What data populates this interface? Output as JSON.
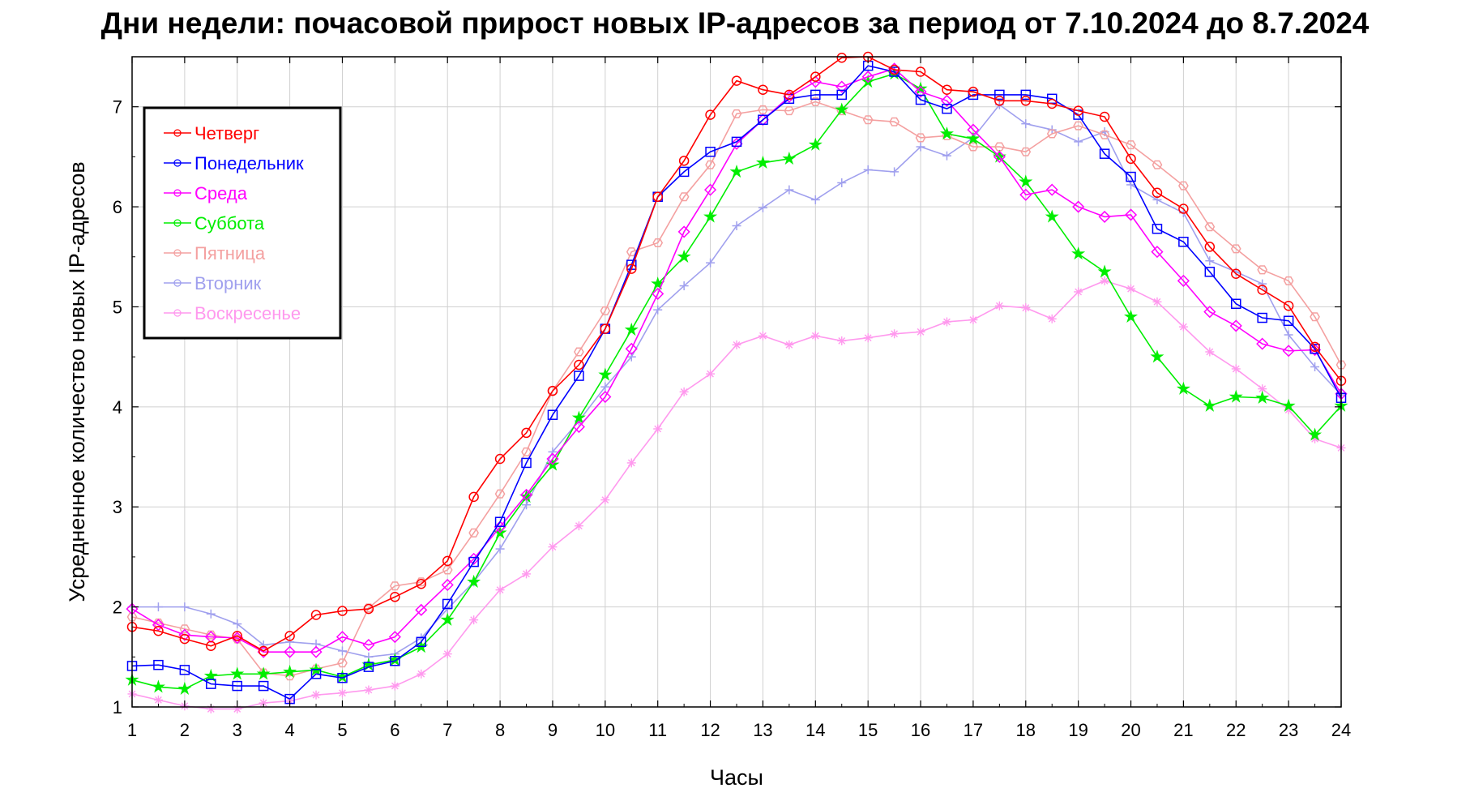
{
  "chart_data": {
    "type": "line",
    "title": "Дни недели: почасовой прирост новых IP-адресов за период от 7.10.2024 до 8.7.2024",
    "xlabel": "Часы",
    "ylabel": "Усредненное количество новых IP-адресов",
    "xlim": [
      1,
      24
    ],
    "ylim": [
      1,
      7.5
    ],
    "xticks": [
      "1",
      "2",
      "3",
      "4",
      "5",
      "6",
      "7",
      "8",
      "9",
      "10",
      "11",
      "12",
      "13",
      "14",
      "15",
      "16",
      "17",
      "18",
      "19",
      "20",
      "21",
      "22",
      "23",
      "24"
    ],
    "yticks": [
      "1",
      "2",
      "3",
      "4",
      "5",
      "6",
      "7"
    ],
    "grid": true,
    "legend_position": "top-left",
    "x": [
      1,
      1.5,
      2,
      2.5,
      3,
      3.5,
      4,
      4.5,
      5,
      5.5,
      6,
      6.5,
      7,
      7.5,
      8,
      8.5,
      9,
      9.5,
      10,
      10.5,
      11,
      11.5,
      12,
      12.5,
      13,
      13.5,
      14,
      14.5,
      15,
      15.5,
      16,
      16.5,
      17,
      17.5,
      18,
      18.5,
      19,
      19.5,
      20,
      20.5,
      21,
      21.5,
      22,
      22.5,
      23,
      23.5,
      24
    ],
    "series": [
      {
        "name": "Четверг",
        "color": "#ff0000",
        "marker": "circle",
        "values": [
          1.8,
          1.76,
          1.68,
          1.61,
          1.71,
          1.56,
          1.71,
          1.92,
          1.96,
          1.98,
          2.1,
          2.23,
          2.46,
          3.1,
          3.48,
          3.74,
          4.16,
          4.42,
          4.78,
          5.38,
          6.1,
          6.46,
          6.92,
          7.26,
          7.17,
          7.12,
          7.3,
          7.49,
          7.5,
          7.37,
          7.35,
          7.17,
          7.15,
          7.06,
          7.06,
          7.03,
          6.96,
          6.9,
          6.48,
          6.14,
          5.98,
          5.6,
          5.33,
          5.17,
          5.01,
          4.6,
          4.26
        ]
      },
      {
        "name": "Понедельник",
        "color": "#0000ff",
        "marker": "square",
        "values": [
          1.41,
          1.42,
          1.37,
          1.23,
          1.21,
          1.21,
          1.08,
          1.33,
          1.29,
          1.4,
          1.46,
          1.65,
          2.03,
          2.45,
          2.85,
          3.44,
          3.92,
          4.31,
          4.78,
          5.42,
          6.1,
          6.35,
          6.55,
          6.65,
          6.87,
          7.08,
          7.12,
          7.12,
          7.41,
          7.35,
          7.07,
          6.98,
          7.12,
          7.12,
          7.12,
          7.08,
          6.92,
          6.53,
          6.3,
          5.78,
          5.65,
          5.35,
          5.03,
          4.89,
          4.86,
          4.58,
          4.09
        ]
      },
      {
        "name": "Среда",
        "color": "#ff00ff",
        "marker": "diamond",
        "values": [
          1.98,
          1.82,
          1.72,
          1.7,
          1.69,
          1.55,
          1.55,
          1.55,
          1.7,
          1.62,
          1.7,
          1.97,
          2.22,
          2.48,
          2.8,
          3.12,
          3.48,
          3.8,
          4.1,
          4.58,
          5.13,
          5.75,
          6.17,
          6.63,
          6.87,
          7.1,
          7.25,
          7.2,
          7.3,
          7.38,
          7.15,
          7.06,
          6.77,
          6.5,
          6.12,
          6.17,
          6.0,
          5.9,
          5.92,
          5.55,
          5.26,
          4.95,
          4.81,
          4.63,
          4.56,
          4.57,
          4.13
        ]
      },
      {
        "name": "Суббота",
        "color": "#00ee00",
        "marker": "star",
        "values": [
          1.27,
          1.2,
          1.18,
          1.31,
          1.33,
          1.33,
          1.35,
          1.37,
          1.3,
          1.42,
          1.47,
          1.6,
          1.87,
          2.25,
          2.74,
          3.1,
          3.42,
          3.89,
          4.32,
          4.77,
          5.23,
          5.5,
          5.9,
          6.35,
          6.44,
          6.48,
          6.62,
          6.97,
          7.25,
          7.33,
          7.18,
          6.73,
          6.68,
          6.5,
          6.25,
          5.9,
          5.53,
          5.35,
          4.9,
          4.5,
          4.18,
          4.01,
          4.1,
          4.09,
          4.01,
          3.72,
          4.01
        ]
      },
      {
        "name": "Пятница",
        "color": "#f4a0a0",
        "marker": "hexagon",
        "values": [
          1.9,
          1.84,
          1.78,
          1.72,
          1.68,
          1.34,
          1.31,
          1.38,
          1.44,
          1.99,
          2.21,
          2.25,
          2.37,
          2.74,
          3.13,
          3.55,
          4.16,
          4.55,
          4.96,
          5.55,
          5.64,
          6.1,
          6.42,
          6.93,
          6.97,
          6.96,
          7.05,
          6.96,
          6.87,
          6.85,
          6.69,
          6.71,
          6.6,
          6.6,
          6.55,
          6.73,
          6.81,
          6.72,
          6.62,
          6.42,
          6.21,
          5.8,
          5.58,
          5.37,
          5.26,
          4.9,
          4.42
        ]
      },
      {
        "name": "Вторник",
        "color": "#a0a0ee",
        "marker": "plus",
        "values": [
          2.0,
          2.0,
          2.0,
          1.93,
          1.83,
          1.62,
          1.65,
          1.63,
          1.56,
          1.5,
          1.53,
          1.69,
          1.98,
          2.25,
          2.58,
          3.02,
          3.55,
          3.86,
          4.2,
          4.5,
          4.97,
          5.21,
          5.44,
          5.81,
          5.99,
          6.17,
          6.07,
          6.24,
          6.37,
          6.35,
          6.6,
          6.51,
          6.69,
          7.02,
          6.83,
          6.77,
          6.65,
          6.75,
          6.22,
          6.07,
          5.94,
          5.46,
          5.35,
          5.23,
          4.72,
          4.4,
          4.12
        ]
      },
      {
        "name": "Воскресенье",
        "color": "#ff99ee",
        "marker": "asterisk",
        "values": [
          1.13,
          1.07,
          1.01,
          0.98,
          0.98,
          1.04,
          1.06,
          1.12,
          1.14,
          1.17,
          1.21,
          1.33,
          1.53,
          1.87,
          2.17,
          2.33,
          2.6,
          2.81,
          3.07,
          3.44,
          3.78,
          4.15,
          4.33,
          4.62,
          4.71,
          4.62,
          4.71,
          4.66,
          4.69,
          4.73,
          4.75,
          4.85,
          4.87,
          5.01,
          4.99,
          4.88,
          5.15,
          5.26,
          5.18,
          5.05,
          4.8,
          4.55,
          4.38,
          4.18,
          3.97,
          3.68,
          3.59
        ]
      }
    ]
  }
}
